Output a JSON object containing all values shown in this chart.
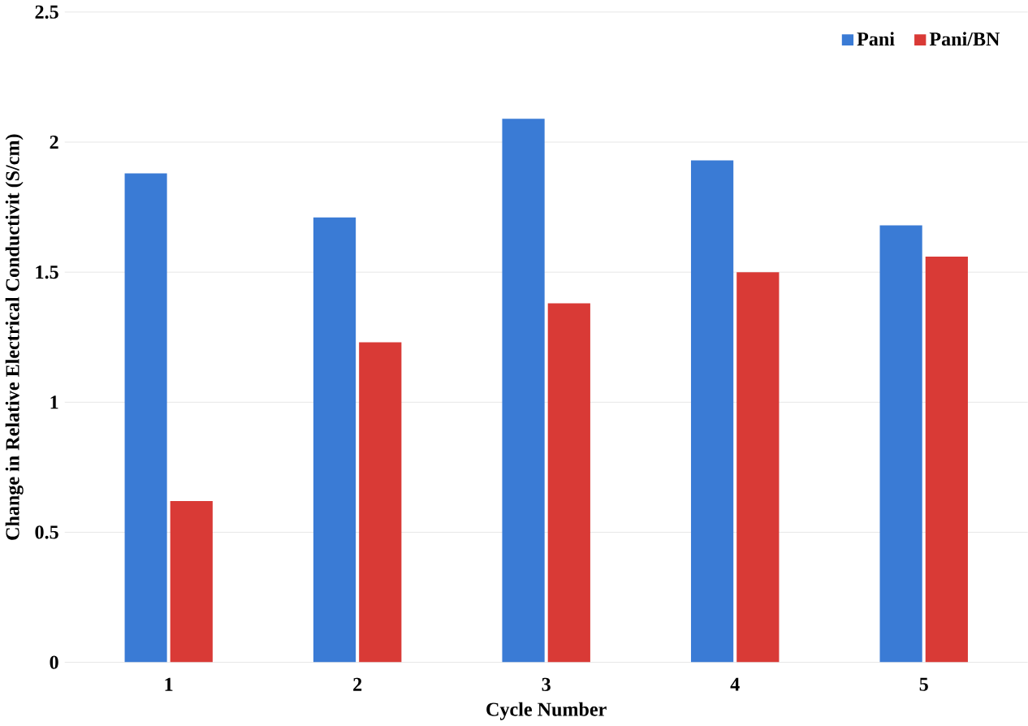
{
  "chart_data": {
    "type": "bar",
    "xlabel": "Cycle Number",
    "ylabel": "Change in Relative Electrical Conductivit (S/cm)",
    "categories": [
      "1",
      "2",
      "3",
      "4",
      "5"
    ],
    "series": [
      {
        "name": "Pani",
        "color": "#3a7bd5",
        "values": [
          1.88,
          1.71,
          2.09,
          1.93,
          1.68
        ]
      },
      {
        "name": "Pani/BN",
        "color": "#d93a36",
        "values": [
          0.62,
          1.23,
          1.38,
          1.5,
          1.56
        ]
      }
    ],
    "ylim": [
      0,
      2.5
    ],
    "yticks": [
      0,
      0.5,
      1,
      1.5,
      2,
      2.5
    ],
    "grid": "y",
    "legend": "top right"
  }
}
